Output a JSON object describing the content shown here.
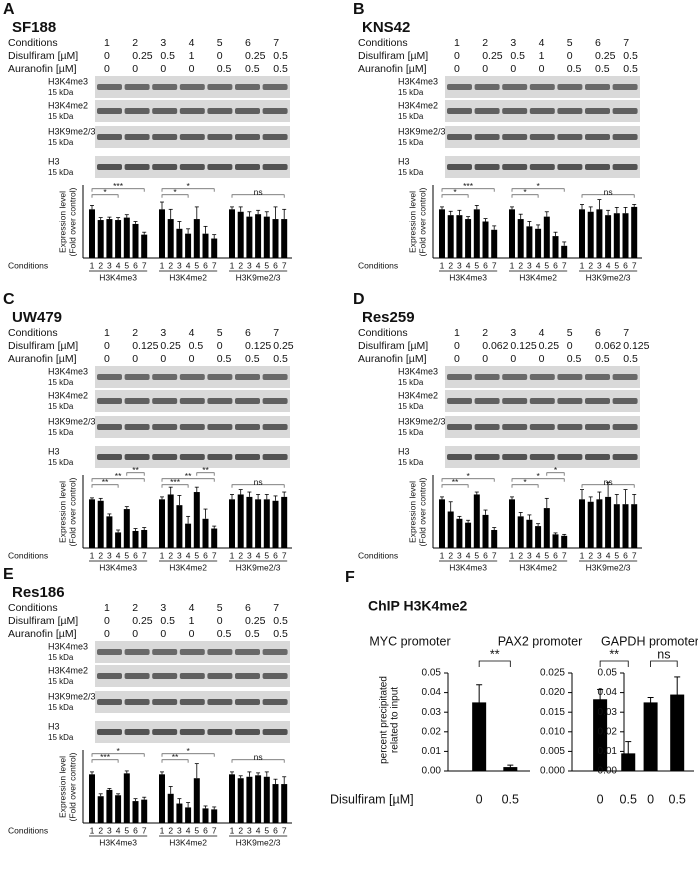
{
  "panels": [
    {
      "letter": "A",
      "name": "SF188",
      "conditions": [
        {
          "label": "Conditions",
          "values": [
            1,
            2,
            3,
            4,
            5,
            6,
            7
          ]
        },
        {
          "label": "Disulfiram [µM]",
          "values": [
            0,
            0.25,
            0.5,
            1,
            0,
            0.25,
            0.5
          ]
        },
        {
          "label": "Auranofin [µM]",
          "values": [
            0,
            0,
            0,
            0,
            0.5,
            0.5,
            0.5
          ]
        }
      ],
      "blots": [
        {
          "label": "H3K4me3",
          "size": "15 kDa"
        },
        {
          "label": "H3K4me2",
          "size": "15 kDa"
        },
        {
          "label": "H3K9me2/3",
          "size": "15 kDa"
        },
        {
          "label": "H3",
          "size": "15 kDa"
        }
      ],
      "chart": {
        "type": "bar",
        "y_label": [
          "Expression level",
          "(Fold over control)"
        ],
        "x_row_label": "Conditions",
        "bar_labels": [
          1,
          2,
          3,
          4,
          5,
          6,
          7
        ],
        "ylim": [
          0,
          1.5
        ],
        "groups": [
          {
            "name": "H3K4me3",
            "values": [
              1,
              0.78,
              0.8,
              0.78,
              0.83,
              0.7,
              0.48
            ],
            "errors": [
              0.08,
              0.05,
              0.04,
              0.05,
              0.06,
              0.05,
              0.05
            ],
            "significance": [
              "*",
              "***"
            ]
          },
          {
            "name": "H3K4me2",
            "values": [
              1,
              0.8,
              0.6,
              0.5,
              0.8,
              0.5,
              0.4
            ],
            "errors": [
              0.15,
              0.2,
              0.15,
              0.1,
              0.25,
              0.15,
              0.08
            ],
            "significance": [
              "*",
              "*"
            ]
          },
          {
            "name": "H3K9me2/3",
            "values": [
              1,
              0.95,
              0.85,
              0.9,
              0.85,
              0.8,
              0.8
            ],
            "errors": [
              0.05,
              0.1,
              0.1,
              0.08,
              0.1,
              0.25,
              0.2
            ],
            "significance": [
              "ns"
            ]
          }
        ]
      }
    },
    {
      "letter": "B",
      "name": "KNS42",
      "conditions": [
        {
          "label": "Conditions",
          "values": [
            1,
            2,
            3,
            4,
            5,
            6,
            7
          ]
        },
        {
          "label": "Disulfiram [µM]",
          "values": [
            0,
            0.25,
            0.5,
            1,
            0,
            0.25,
            0.5
          ]
        },
        {
          "label": "Auranofin [µM]",
          "values": [
            0,
            0,
            0,
            0,
            0.5,
            0.5,
            0.5
          ]
        }
      ],
      "blots": [
        {
          "label": "H3K4me3",
          "size": "15 kDa"
        },
        {
          "label": "H3K4me2",
          "size": "15 kDa"
        },
        {
          "label": "H3K9me2/3",
          "size": "15 kDa"
        },
        {
          "label": "H3",
          "size": "15 kDa"
        }
      ],
      "chart": {
        "type": "bar",
        "y_label": [
          "Expression level",
          "(Fold over control)"
        ],
        "x_row_label": "Conditions",
        "bar_labels": [
          1,
          2,
          3,
          4,
          5,
          6,
          7
        ],
        "ylim": [
          0,
          1.5
        ],
        "groups": [
          {
            "name": "H3K4me3",
            "values": [
              1,
              0.88,
              0.88,
              0.8,
              1,
              0.75,
              0.58
            ],
            "errors": [
              0.05,
              0.08,
              0.1,
              0.05,
              0.08,
              0.06,
              0.08
            ],
            "significance": [
              "*",
              "***"
            ]
          },
          {
            "name": "H3K4me2",
            "values": [
              1,
              0.8,
              0.65,
              0.6,
              0.85,
              0.45,
              0.25
            ],
            "errors": [
              0.05,
              0.1,
              0.1,
              0.08,
              0.1,
              0.08,
              0.08
            ],
            "significance": [
              "*",
              "*"
            ]
          },
          {
            "name": "H3K9me2/3",
            "values": [
              1,
              0.95,
              1,
              0.88,
              0.92,
              0.92,
              1.05
            ],
            "errors": [
              0.1,
              0.1,
              0.2,
              0.1,
              0.12,
              0.12,
              0.05
            ],
            "significance": [
              "ns"
            ]
          }
        ]
      }
    },
    {
      "letter": "C",
      "name": "UW479",
      "conditions": [
        {
          "label": "Conditions",
          "values": [
            1,
            2,
            3,
            4,
            5,
            6,
            7
          ]
        },
        {
          "label": "Disulfiram [µM]",
          "values": [
            0,
            0.125,
            0.25,
            0.5,
            0,
            0.125,
            0.25
          ]
        },
        {
          "label": "Auranofin [µM]",
          "values": [
            0,
            0,
            0,
            0,
            0.5,
            0.5,
            0.5
          ]
        }
      ],
      "blots": [
        {
          "label": "H3K4me3",
          "size": "15 kDa"
        },
        {
          "label": "H3K4me2",
          "size": "15 kDa"
        },
        {
          "label": "H3K9me2/3",
          "size": "15 kDa"
        },
        {
          "label": "H3",
          "size": "15 kDa"
        }
      ],
      "chart": {
        "type": "bar",
        "y_label": [
          "Expression level",
          "(Fold over control)"
        ],
        "x_row_label": "Conditions",
        "bar_labels": [
          1,
          2,
          3,
          4,
          5,
          6,
          7
        ],
        "ylim": [
          0,
          1.5
        ],
        "groups": [
          {
            "name": "H3K4me3",
            "values": [
              1,
              0.97,
              0.65,
              0.32,
              0.8,
              0.35,
              0.37
            ],
            "errors": [
              0.03,
              0.05,
              0.05,
              0.05,
              0.05,
              0.05,
              0.05
            ],
            "significance": [
              "**",
              "**",
              "**"
            ]
          },
          {
            "name": "H3K4me2",
            "values": [
              1,
              1.1,
              0.88,
              0.5,
              1.15,
              0.6,
              0.4
            ],
            "errors": [
              0.05,
              0.15,
              0.2,
              0.15,
              0.1,
              0.2,
              0.05
            ],
            "significance": [
              "***",
              "**",
              "**"
            ]
          },
          {
            "name": "H3K9me2/3",
            "values": [
              1,
              1.1,
              1.05,
              1,
              1,
              0.97,
              1.05
            ],
            "errors": [
              0.1,
              0.1,
              0.1,
              0.1,
              0.1,
              0.1,
              0.1
            ],
            "significance": [
              "ns"
            ]
          }
        ]
      }
    },
    {
      "letter": "D",
      "name": "Res259",
      "conditions": [
        {
          "label": "Conditions",
          "values": [
            1,
            2,
            3,
            4,
            5,
            6,
            7
          ]
        },
        {
          "label": "Disulfiram [µM]",
          "values": [
            0,
            0.062,
            0.125,
            0.25,
            0,
            0.062,
            0.125
          ]
        },
        {
          "label": "Auranofin [µM]",
          "values": [
            0,
            0,
            0,
            0,
            0.5,
            0.5,
            0.5
          ]
        }
      ],
      "blots": [
        {
          "label": "H3K4me3",
          "size": "15 kDa"
        },
        {
          "label": "H3K4me2",
          "size": "15 kDa"
        },
        {
          "label": "H3K9me2/3",
          "size": "15 kDa"
        },
        {
          "label": "H3",
          "size": "15 kDa"
        }
      ],
      "chart": {
        "type": "bar",
        "y_label": [
          "Expression level",
          "(Fold over control)"
        ],
        "x_row_label": "Conditions",
        "bar_labels": [
          1,
          2,
          3,
          4,
          5,
          6,
          7
        ],
        "ylim": [
          0,
          1.5
        ],
        "groups": [
          {
            "name": "H3K4me3",
            "values": [
              1,
              0.75,
              0.6,
              0.52,
              1.1,
              0.68,
              0.37
            ],
            "errors": [
              0.05,
              0.2,
              0.05,
              0.05,
              0.05,
              0.1,
              0.05
            ],
            "significance": [
              "**",
              "*"
            ]
          },
          {
            "name": "H3K4me2",
            "values": [
              1,
              0.65,
              0.58,
              0.45,
              0.82,
              0.28,
              0.25
            ],
            "errors": [
              0.05,
              0.08,
              0.1,
              0.05,
              0.2,
              0.03,
              0.03
            ],
            "significance": [
              "*",
              "*",
              "*"
            ]
          },
          {
            "name": "H3K9me2/3",
            "values": [
              1,
              0.95,
              1,
              1.05,
              0.9,
              0.9,
              0.9
            ],
            "errors": [
              0.2,
              0.1,
              0.15,
              0.3,
              0.2,
              0.3,
              0.2
            ],
            "significance": [
              "ns"
            ]
          }
        ]
      }
    },
    {
      "letter": "E",
      "name": "Res186",
      "conditions": [
        {
          "label": "Conditions",
          "values": [
            1,
            2,
            3,
            4,
            5,
            6,
            7
          ]
        },
        {
          "label": "Disulfiram [µM]",
          "values": [
            0,
            0.25,
            0.5,
            1,
            0,
            0.25,
            0.5
          ]
        },
        {
          "label": "Auranofin [µM]",
          "values": [
            0,
            0,
            0,
            0,
            0.5,
            0.5,
            0.5
          ]
        }
      ],
      "blots": [
        {
          "label": "H3K4me3",
          "size": "15 kDa"
        },
        {
          "label": "H3K4me2",
          "size": "15 kDa"
        },
        {
          "label": "H3K9me2/3",
          "size": "15 kDa"
        },
        {
          "label": "H3",
          "size": "15 kDa"
        }
      ],
      "chart": {
        "type": "bar",
        "y_label": [
          "Expression level",
          "(Fold over control)"
        ],
        "x_row_label": "Conditions",
        "bar_labels": [
          1,
          2,
          3,
          4,
          5,
          6,
          7
        ],
        "ylim": [
          0,
          1.5
        ],
        "groups": [
          {
            "name": "H3K4me3",
            "values": [
              1,
              0.55,
              0.68,
              0.57,
              1.02,
              0.45,
              0.48
            ],
            "errors": [
              0.05,
              0.05,
              0.03,
              0.03,
              0.05,
              0.05,
              0.05
            ],
            "significance": [
              "***",
              "*"
            ]
          },
          {
            "name": "H3K4me2",
            "values": [
              1,
              0.6,
              0.4,
              0.32,
              0.92,
              0.3,
              0.28
            ],
            "errors": [
              0.05,
              0.15,
              0.1,
              0.1,
              0.3,
              0.05,
              0.05
            ],
            "significance": [
              "**",
              "*"
            ]
          },
          {
            "name": "H3K9me2/3",
            "values": [
              1,
              0.92,
              0.95,
              0.98,
              0.95,
              0.8,
              0.8
            ],
            "errors": [
              0.05,
              0.05,
              0.1,
              0.05,
              0.1,
              0.1,
              0.15
            ],
            "significance": [
              "ns"
            ]
          }
        ]
      }
    }
  ],
  "panel_f": {
    "letter": "F",
    "title": "ChIP H3K4me2",
    "y_label": [
      "percent precipitated",
      "related to input"
    ],
    "x_label": "Disulfiram [µM]",
    "charts": [
      {
        "type": "bar",
        "title": "MYC promoter",
        "categories": [
          0,
          0.5
        ],
        "values": [
          0.035,
          0.002
        ],
        "errors": [
          0.009,
          0.001
        ],
        "ylim": [
          0,
          0.05
        ],
        "yticks": [
          {
            "value": 0,
            "label": "0.00"
          },
          0.01,
          0.02,
          0.03,
          0.04,
          0.05
        ],
        "significance": "**"
      },
      {
        "type": "bar",
        "title": "PAX2 promoter",
        "categories": [
          0,
          0.5
        ],
        "values": [
          0.0183,
          0.0045
        ],
        "errors": [
          0.0025,
          0.003
        ],
        "ylim": [
          0,
          0.025
        ],
        "yticks": [
          {
            "value": 0,
            "label": "0.000"
          },
          0.005,
          {
            "value": 0.01,
            "label": "0.010"
          },
          0.015,
          {
            "value": 0.02,
            "label": "0.020"
          },
          0.025
        ],
        "significance": "**"
      },
      {
        "type": "bar",
        "title": "GAPDH promoter",
        "categories": [
          0,
          0.5
        ],
        "values": [
          0.035,
          0.039
        ],
        "errors": [
          0.0025,
          0.009
        ],
        "ylim": [
          0,
          0.05
        ],
        "yticks": [
          {
            "value": 0,
            "label": "0.00"
          },
          0.01,
          0.02,
          0.03,
          0.04,
          0.05
        ],
        "significance": "ns"
      }
    ]
  }
}
